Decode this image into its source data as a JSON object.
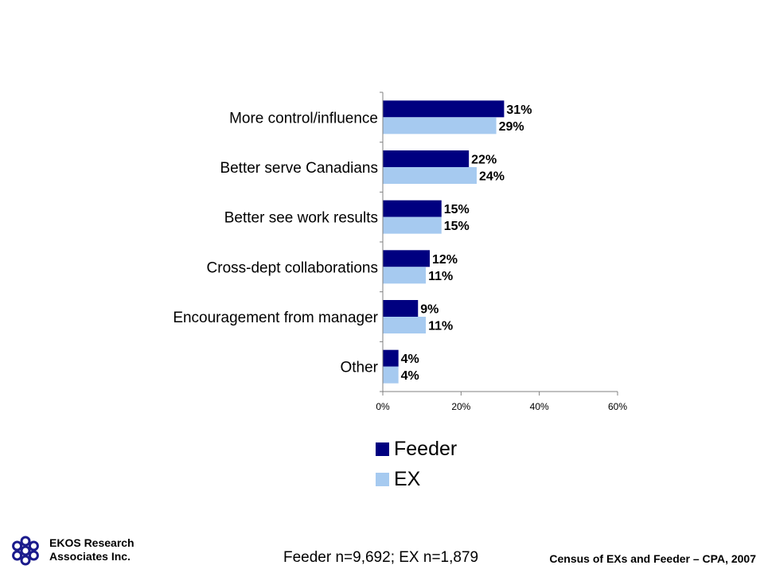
{
  "chart_data": {
    "type": "bar",
    "orientation": "horizontal",
    "categories": [
      "More control/influence",
      "Better serve Canadians",
      "Better see work results",
      "Cross-dept collaborations",
      "Encouragement from manager",
      "Other"
    ],
    "series": [
      {
        "name": "Feeder",
        "color": "#000080",
        "values": [
          31,
          22,
          15,
          12,
          9,
          4
        ],
        "labels": [
          "31%",
          "22%",
          "15%",
          "12%",
          "9%",
          "4%"
        ]
      },
      {
        "name": "EX",
        "color": "#A6CAF0",
        "values": [
          29,
          24,
          15,
          11,
          11,
          4
        ],
        "labels": [
          "29%",
          "24%",
          "15%",
          "11%",
          "11%",
          "4%"
        ]
      }
    ],
    "xlim": [
      0,
      60
    ],
    "xticks": [
      0,
      20,
      40,
      60
    ],
    "xtick_labels": [
      "0%",
      "20%",
      "40%",
      "60%"
    ],
    "grid": false,
    "legend_position": "bottom"
  },
  "footer": {
    "company_line1": "EKOS Research",
    "company_line2": "Associates Inc.",
    "sample": "Feeder n=9,692; EX n=1,879",
    "source": "Census of EXs and Feeder – CPA, 2007",
    "logo_icon": "ekos-logo-icon",
    "logo_color": "#1a1a8c"
  }
}
